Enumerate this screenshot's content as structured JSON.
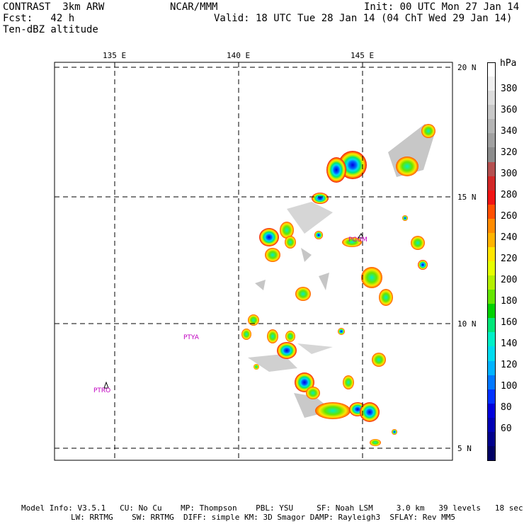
{
  "header": {
    "model": "CONTRAST  3km ARW",
    "org": "NCAR/MMM",
    "init": "Init: 00 UTC Mon 27 Jan 14",
    "fcst": "Fcst:   42 h",
    "valid": "Valid: 18 UTC Tue 28 Jan 14 (04 ChT Wed 29 Jan 14)",
    "field": "Ten-dBZ altitude"
  },
  "map": {
    "lon_labels": [
      "135 E",
      "140 E",
      "145 E"
    ],
    "lat_labels": [
      "20 N",
      "15 N",
      "10 N",
      "5 N"
    ],
    "stations": [
      {
        "id": "PTRO",
        "label": "PTRO"
      },
      {
        "id": "PTYA",
        "label": "PTYA"
      },
      {
        "id": "PGUM",
        "label": "PGUM"
      }
    ]
  },
  "colorbar": {
    "unit": "hPa",
    "labels": [
      "380",
      "360",
      "340",
      "320",
      "300",
      "280",
      "260",
      "240",
      "220",
      "200",
      "180",
      "160",
      "140",
      "120",
      "100",
      "80",
      "60"
    ],
    "colors": [
      "#ffffff",
      "#f0f0f0",
      "#dcdcdc",
      "#c8c8c8",
      "#b4b4b4",
      "#a0a0a0",
      "#8c8c8c",
      "#b45050",
      "#d22828",
      "#f01414",
      "#ff5000",
      "#ff8c00",
      "#ffb400",
      "#ffe600",
      "#e6ff00",
      "#b4f000",
      "#64e600",
      "#00d200",
      "#00e678",
      "#00f0c8",
      "#00dcf0",
      "#00b4ff",
      "#0078ff",
      "#0032ff",
      "#0000dc",
      "#0000b4",
      "#00008c",
      "#000064"
    ]
  },
  "footer": {
    "line1": "Model Info: V3.5.1   CU: No Cu    MP: Thompson    PBL: YSU     SF: Noah LSM     3.0 km   39 levels   18 sec",
    "line2": "LW: RRTMG    SW: RRTMG  DIFF: simple KM: 3D Smagor DAMP: Rayleigh3  SFLAY: Rev MM5"
  }
}
